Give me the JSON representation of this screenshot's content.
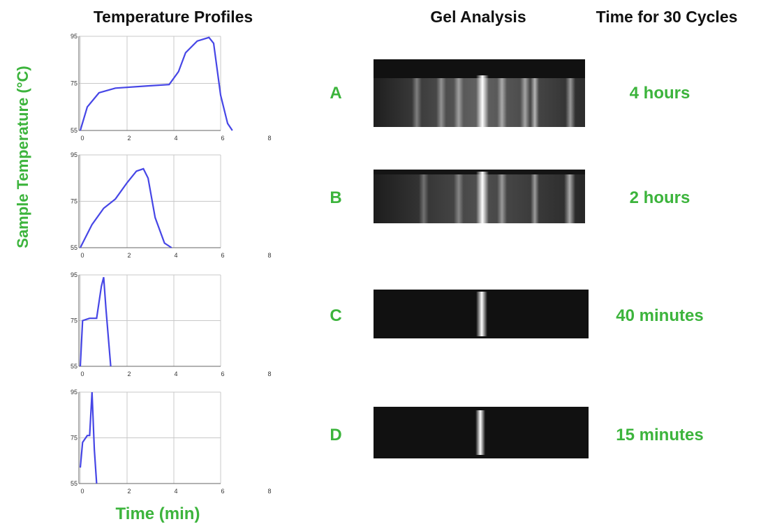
{
  "title": "Temperature Profiles",
  "y_label": "Sample Temperature (°C)",
  "x_label": "Time (min)",
  "chart_data": [
    {
      "type": "line",
      "x": [
        0,
        0.3,
        0.8,
        1.5,
        3,
        3.8,
        4.2,
        4.5,
        5,
        5.5,
        5.7,
        6,
        6.3,
        6.5
      ],
      "series": [
        {
          "color": "#4646e6",
          "values": [
            55,
            65,
            71,
            73,
            74,
            74.5,
            80,
            88,
            93,
            94.5,
            92,
            70,
            58,
            55
          ]
        }
      ],
      "xlim": [
        0,
        8
      ],
      "ylim": [
        55,
        95
      ],
      "xticks": [
        0,
        2,
        4,
        6,
        8
      ],
      "yticks": [
        55,
        75,
        95
      ],
      "grid": true
    },
    {
      "type": "line",
      "x": [
        0,
        0.5,
        1,
        1.5,
        2,
        2.4,
        2.7,
        2.9,
        3.2,
        3.6,
        3.9
      ],
      "series": [
        {
          "color": "#4646e6",
          "values": [
            55,
            65,
            72,
            76,
            83,
            88,
            89,
            85,
            68,
            57,
            55
          ]
        }
      ],
      "xlim": [
        0,
        8
      ],
      "ylim": [
        55,
        95
      ],
      "xticks": [
        0,
        2,
        4,
        6,
        8
      ],
      "yticks": [
        55,
        75,
        95
      ],
      "grid": true
    },
    {
      "type": "line",
      "x": [
        0,
        0.1,
        0.4,
        0.7,
        0.9,
        1,
        1.1,
        1.3
      ],
      "series": [
        {
          "color": "#4646e6",
          "values": [
            55,
            75,
            76,
            76,
            90,
            94,
            80,
            55
          ]
        }
      ],
      "xlim": [
        0,
        8
      ],
      "ylim": [
        55,
        95
      ],
      "xticks": [
        0,
        2,
        4,
        6,
        8
      ],
      "yticks": [
        55,
        75,
        95
      ],
      "grid": true
    },
    {
      "type": "line",
      "x": [
        0,
        0.1,
        0.3,
        0.4,
        0.5,
        0.6,
        0.7
      ],
      "series": [
        {
          "color": "#4646e6",
          "values": [
            62,
            73,
            76,
            76,
            95,
            70,
            55
          ]
        }
      ],
      "xlim": [
        0,
        8
      ],
      "ylim": [
        55,
        95
      ],
      "xticks": [
        0,
        2,
        4,
        6,
        8
      ],
      "yticks": [
        55,
        75,
        95
      ],
      "grid": true
    }
  ],
  "gel": {
    "title": "Gel Analysis",
    "time_title": "Time for 30 Cycles",
    "lanes": [
      {
        "label": "A",
        "time": "4 hours"
      },
      {
        "label": "B",
        "time": "2 hours"
      },
      {
        "label": "C",
        "time": "40 minutes"
      },
      {
        "label": "D",
        "time": "15 minutes"
      }
    ]
  }
}
